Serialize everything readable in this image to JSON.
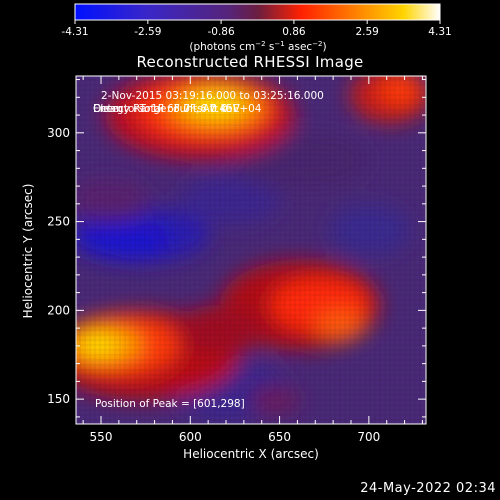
{
  "colorbar": {
    "tick_labels": [
      "-4.31",
      "-2.59",
      "-0.86",
      "0.86",
      "2.59",
      "4.31"
    ],
    "tick_values": [
      -4.31,
      -2.59,
      -0.86,
      0.86,
      2.59,
      4.31
    ],
    "range": [
      -4.31,
      4.31
    ],
    "units_prefix": "(photons cm",
    "units_exp1": "−2",
    "units_mid": " s",
    "units_exp2": "−1",
    "units_mid2": " asec",
    "units_exp3": "−2",
    "units_suffix": ")",
    "colors": [
      "#0000ff",
      "#3a2aa8",
      "#5a2a6e",
      "#ff2a00",
      "#ff8a00",
      "#ffd800",
      "#ffffff"
    ]
  },
  "image": {
    "title": "Reconstructed RHESSI Image",
    "info_lines": [
      "2-Nov-2015 03:19:16.000 to 03:25:16.000",
      "Detectors: 1F 6F 7F, Att 0",
      "Energy Range: 3.0 - 6.0 keV",
      "Clean     Total counts: 7.45E+04"
    ],
    "peak_label": "Position of Peak = [601,298]",
    "xlabel": "Heliocentric X (arcsec)",
    "ylabel": "Heliocentric Y (arcsec)",
    "x_ticks": [
      "550",
      "600",
      "650",
      "700"
    ],
    "x_tick_values": [
      550,
      600,
      650,
      700
    ],
    "y_ticks": [
      "150",
      "200",
      "250",
      "300"
    ],
    "y_tick_values": [
      150,
      200,
      250,
      300
    ],
    "xlim": [
      536,
      732
    ],
    "ylim": [
      136,
      332
    ]
  },
  "footer": {
    "date": "24-May-2022 02:34"
  }
}
